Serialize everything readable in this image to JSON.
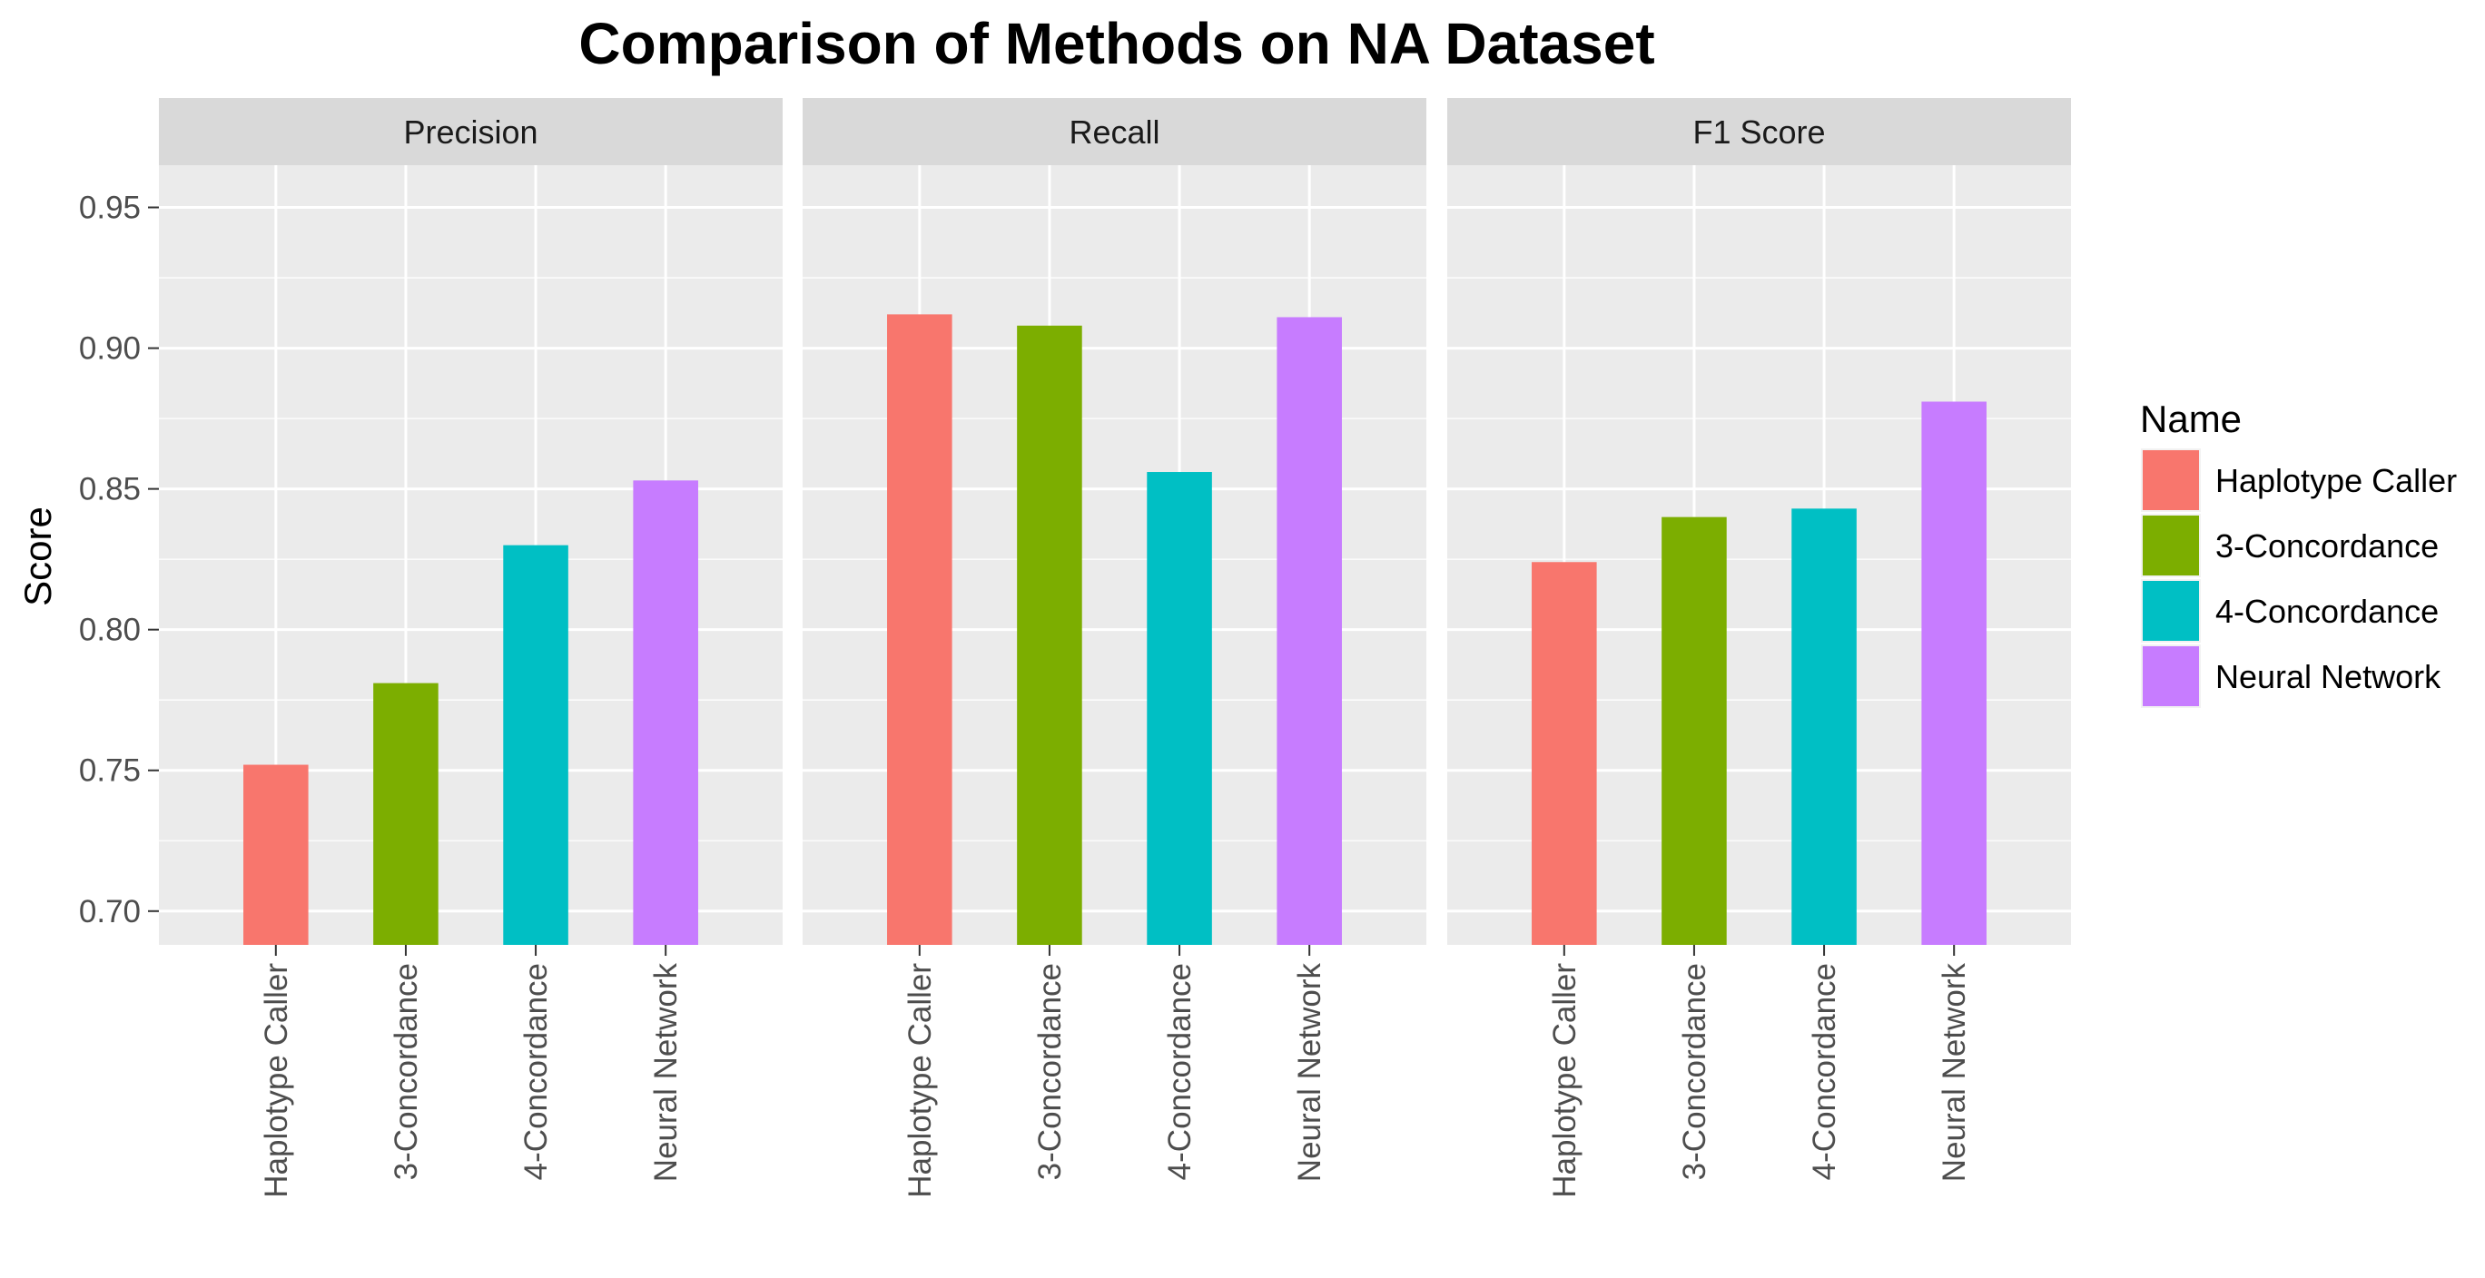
{
  "chart_data": {
    "type": "bar",
    "title": "Comparison of Methods on NA Dataset",
    "ylabel": "Score",
    "xlabel": "",
    "ylim": [
      0.688,
      0.965
    ],
    "yticks": [
      "0.70",
      "0.75",
      "0.80",
      "0.85",
      "0.90",
      "0.95"
    ],
    "grid": true,
    "legend": {
      "title": "Name",
      "position": "right",
      "entries": [
        "Haplotype Caller",
        "3-Concordance",
        "4-Concordance",
        "Neural Network"
      ]
    },
    "categories": [
      "Haplotype Caller",
      "3-Concordance",
      "4-Concordance",
      "Neural Network"
    ],
    "colors": [
      "#F8766D",
      "#7CAE00",
      "#00BFC4",
      "#C77CFF"
    ],
    "panels": [
      {
        "name": "Precision",
        "values": [
          0.752,
          0.781,
          0.83,
          0.853
        ]
      },
      {
        "name": "Recall",
        "values": [
          0.912,
          0.908,
          0.856,
          0.911
        ]
      },
      {
        "name": "F1 Score",
        "values": [
          0.824,
          0.84,
          0.843,
          0.881
        ]
      }
    ]
  }
}
